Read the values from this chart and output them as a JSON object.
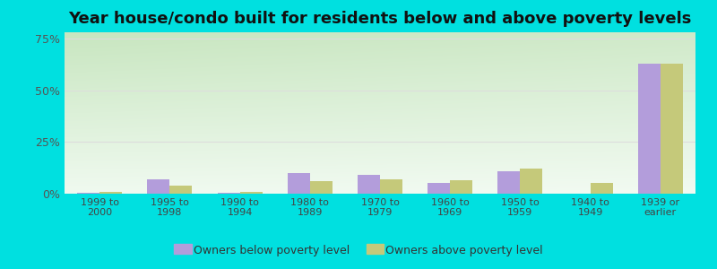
{
  "title": "Year house/condo built for residents below and above poverty levels",
  "categories": [
    "1999 to\n2000",
    "1995 to\n1998",
    "1990 to\n1994",
    "1980 to\n1989",
    "1970 to\n1979",
    "1960 to\n1969",
    "1950 to\n1959",
    "1940 to\n1949",
    "1939 or\nearlier"
  ],
  "below_poverty": [
    0.5,
    7.0,
    0.5,
    10.0,
    9.0,
    5.0,
    11.0,
    0.0,
    63.0
  ],
  "above_poverty": [
    1.0,
    4.0,
    1.0,
    6.0,
    7.0,
    6.5,
    12.0,
    5.0,
    63.0
  ],
  "below_color": "#b39ddb",
  "above_color": "#c5c97a",
  "ylim_max": 78,
  "yticks": [
    0,
    25,
    50,
    75
  ],
  "ytick_labels": [
    "0%",
    "25%",
    "50%",
    "75%"
  ],
  "background_outer": "#00e0e0",
  "bg_top_left": "#c8e6c0",
  "bg_bottom_right": "#f5fff5",
  "grid_color": "#dddddd",
  "title_fontsize": 13,
  "legend_below_label": "Owners below poverty level",
  "legend_above_label": "Owners above poverty level",
  "bar_width": 0.32
}
